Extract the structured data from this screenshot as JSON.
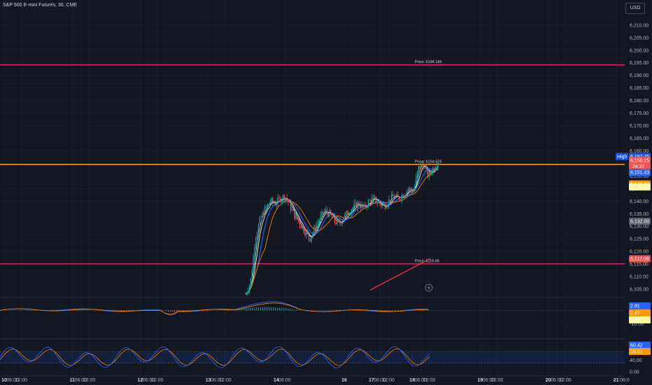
{
  "header": {
    "title": "S&P 500 E-mini Futures, 30, CME",
    "currency_button": "USD"
  },
  "price_axis": {
    "ticks": [
      "6,210.00",
      "6,205.00",
      "6,200.00",
      "6,195.00",
      "6,190.00",
      "6,185.00",
      "6,180.00",
      "6,175.00",
      "6,170.00",
      "6,165.00",
      "6,160.00",
      "6,150.00",
      "6,145.00",
      "6,140.00",
      "6,135.00",
      "6,130.00",
      "6,125.00",
      "6,120.00",
      "6,115.00",
      "6,110.00",
      "6,105.00"
    ],
    "tick_values": [
      6210,
      6205,
      6200,
      6195,
      6190,
      6185,
      6180,
      6175,
      6170,
      6165,
      6160,
      6150,
      6145,
      6140,
      6135,
      6130,
      6125,
      6120,
      6115,
      6110,
      6105
    ],
    "range": [
      6102.5,
      6213.3
    ]
  },
  "price_badges": {
    "high_label": "High",
    "high_value": "6,157.75",
    "last_price": "6,156.25",
    "countdown": "24:37",
    "ma_fast": "6,151.43",
    "ma_mid": "6,146.84",
    "ma_slow": "6,145.63",
    "marker_low": "6,132.00",
    "support_level": "6,117.08"
  },
  "badge_values": {
    "high": 6157.75,
    "last": 6156.25,
    "ma_fast": 6151.43,
    "ma_mid": 6146.84,
    "ma_slow": 6145.63,
    "marker_low": 6132.0,
    "support": 6117.08
  },
  "horizontal_levels": [
    {
      "label": "Price: 6194.185",
      "value": 6194.185,
      "color": "#e91e63"
    },
    {
      "label": "Price: 6154.625",
      "value": 6154.625,
      "color": "#ff9800"
    },
    {
      "label": "Price: 6115.06",
      "value": 6115.06,
      "color": "#e91e63"
    }
  ],
  "macd_pane": {
    "badges": [
      "2.81",
      "2.47",
      "0.34"
    ],
    "tick": "-10.00",
    "tick_value": -10,
    "range": [
      -14,
      8
    ]
  },
  "rsi_pane": {
    "badges": [
      "60.42",
      "56.01"
    ],
    "ticks": [
      "40.00",
      "0.00"
    ],
    "tick_values": [
      40,
      0
    ],
    "range": [
      -2,
      104
    ],
    "band": [
      30,
      70
    ]
  },
  "time_axis": {
    "labels": [
      {
        "t": "10",
        "x": 0.0,
        "bold": true
      },
      {
        "t": "06:00",
        "x": 0.125,
        "bold": false
      },
      {
        "t": "12:00",
        "x": 0.25,
        "bold": false
      },
      {
        "t": "11",
        "x": 1.0,
        "bold": true
      },
      {
        "t": "06:00",
        "x": 1.125,
        "bold": false
      },
      {
        "t": "12:00",
        "x": 1.25,
        "bold": false
      },
      {
        "t": "12",
        "x": 2.0,
        "bold": true
      },
      {
        "t": "06:00",
        "x": 2.125,
        "bold": false
      },
      {
        "t": "12:00",
        "x": 2.25,
        "bold": false
      },
      {
        "t": "13",
        "x": 3.0,
        "bold": true
      },
      {
        "t": "06:00",
        "x": 3.125,
        "bold": false
      },
      {
        "t": "12:00",
        "x": 3.25,
        "bold": false
      },
      {
        "t": "14",
        "x": 4.0,
        "bold": true
      },
      {
        "t": "06:00",
        "x": 4.125,
        "bold": false
      },
      {
        "t": "16",
        "x": 5.0,
        "bold": true
      },
      {
        "t": "17",
        "x": 5.4,
        "bold": true
      },
      {
        "t": "06:00",
        "x": 5.525,
        "bold": false
      },
      {
        "t": "12:00",
        "x": 5.65,
        "bold": false
      },
      {
        "t": "18",
        "x": 6.0,
        "bold": true
      },
      {
        "t": "06:00",
        "x": 6.125,
        "bold": false
      },
      {
        "t": "12:00",
        "x": 6.25,
        "bold": false
      },
      {
        "t": "19",
        "x": 7.0,
        "bold": true
      },
      {
        "t": "06:00",
        "x": 7.125,
        "bold": false
      },
      {
        "t": "12:00",
        "x": 7.25,
        "bold": false
      },
      {
        "t": "20",
        "x": 8.0,
        "bold": true
      },
      {
        "t": "06:00",
        "x": 8.125,
        "bold": false
      },
      {
        "t": "12:00",
        "x": 8.25,
        "bold": false
      },
      {
        "t": "21",
        "x": 9.0,
        "bold": true
      },
      {
        "t": "06:0",
        "x": 9.125,
        "bold": false
      }
    ]
  },
  "colors": {
    "up": "#26a69a",
    "down": "#ef5350",
    "pink": "#e91e63",
    "orange": "#ff9800",
    "blue": "#2962ff",
    "sky": "#4fc3f7",
    "lightblue": "#90caf9",
    "cream": "#fff9c4",
    "ma_orange": "#f57c00",
    "ma_red": "#f23645",
    "bg": "#131722",
    "grid": "#1e222d"
  },
  "chart_data": {
    "type": "candlestick",
    "title": "S&P 500 E-mini Futures, 30, CME",
    "timeframe": "30",
    "data_start_day": 3.55,
    "candle_close_approx": [
      6103,
      6108,
      6126,
      6133,
      6137,
      6140,
      6139,
      6141,
      6142,
      6138,
      6134,
      6131,
      6128,
      6125,
      6129,
      6133,
      6136,
      6135,
      6132,
      6131,
      6134,
      6136,
      6138,
      6139,
      6137,
      6140,
      6141,
      6139,
      6138,
      6140,
      6142,
      6141,
      6143,
      6145,
      6144,
      6153,
      6155,
      6150,
      6153,
      6156
    ],
    "levels": [
      6194.185,
      6154.625,
      6115.06
    ],
    "last_price": 6156.25,
    "high": 6157.75
  },
  "icons": {
    "alert_circle": "lightning-bolt-icon"
  }
}
